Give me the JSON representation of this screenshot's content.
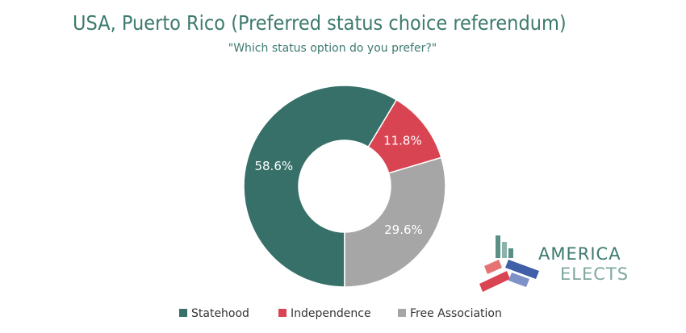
{
  "chart_data": {
    "type": "donut",
    "title": "USA, Puerto Rico (Preferred status choice referendum)",
    "subtitle": "\"Which status option do you prefer?\"",
    "categories": [
      "Statehood",
      "Independence",
      "Free Association"
    ],
    "values": [
      58.6,
      11.8,
      29.6
    ],
    "value_labels": [
      "58.6%",
      "11.8%",
      "29.6%"
    ],
    "colors": [
      "#367068",
      "#d94452",
      "#a6a6a6"
    ],
    "legend": "bottom"
  },
  "logo": {
    "lines": [
      "AMERICA",
      "ELECTS"
    ]
  }
}
